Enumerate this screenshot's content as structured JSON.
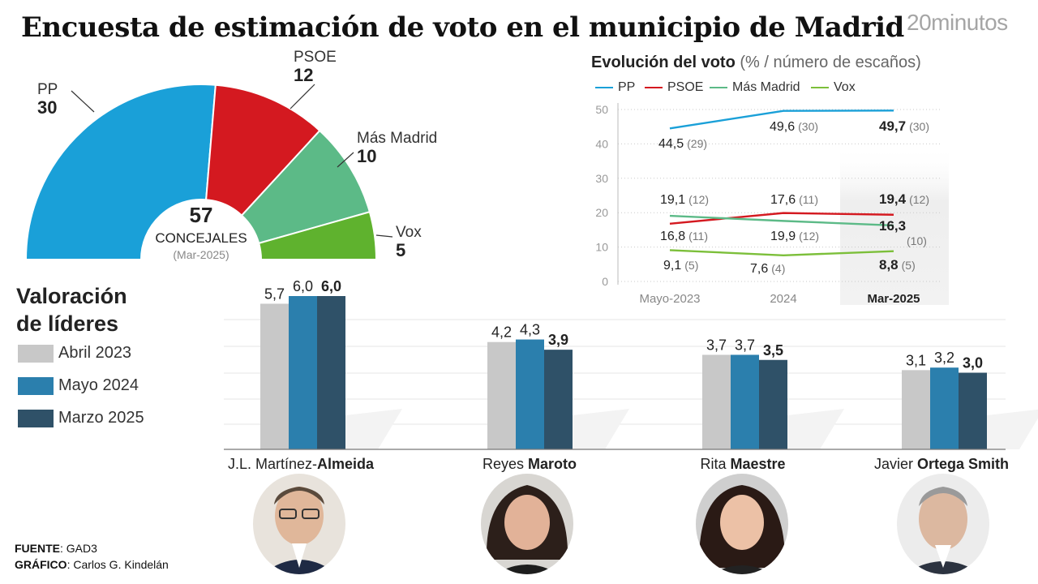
{
  "title": "Encuesta de estimación de voto en el municipio de Madrid",
  "brand": "20minutos",
  "colors": {
    "pp": "#1aa0d8",
    "psoe": "#d41920",
    "mas_madrid": "#5cba87",
    "vox": "#5fb22e",
    "abril2023": "#c8c8c8",
    "mayo2024": "#2b7fad",
    "marzo2025": "#2f5168"
  },
  "chart_data": [
    {
      "type": "pie",
      "subtype": "semicircle",
      "center_value": "57",
      "center_label": "CONCEJALES",
      "center_sub": "(Mar-2025)",
      "slices": [
        {
          "name": "PP",
          "value": 30
        },
        {
          "name": "PSOE",
          "value": 12
        },
        {
          "name": "Más Madrid",
          "value": 10
        },
        {
          "name": "Vox",
          "value": 5
        }
      ]
    },
    {
      "type": "line",
      "title": "Evolución del voto",
      "title_suffix": "(% /",
      "title_suffix2": "número de escaños)",
      "categories": [
        "Mayo-2023",
        "2024",
        "Mar-2025"
      ],
      "yticks": [
        0,
        10,
        20,
        30,
        40,
        50
      ],
      "ylim": [
        0,
        50
      ],
      "legend": [
        "PP",
        "PSOE",
        "Más Madrid",
        "Vox"
      ],
      "series": [
        {
          "name": "PP",
          "values": [
            44.5,
            49.6,
            49.7
          ],
          "labels": [
            "44,5",
            "49,6",
            "49,7"
          ],
          "seats": [
            "(29)",
            "(30)",
            "(30)"
          ]
        },
        {
          "name": "PSOE",
          "values": [
            16.8,
            19.9,
            19.4
          ],
          "labels": [
            "16,8",
            "19,9",
            "19,4"
          ],
          "seats": [
            "(11)",
            "(12)",
            "(12)"
          ]
        },
        {
          "name": "Más Madrid",
          "values": [
            19.1,
            17.6,
            16.3
          ],
          "labels": [
            "19,1",
            "17,6",
            "16,3"
          ],
          "seats": [
            "(12)",
            "(11)",
            "(10)"
          ]
        },
        {
          "name": "Vox",
          "values": [
            9.1,
            7.6,
            8.8
          ],
          "labels": [
            "9,1",
            "7,6",
            "8,8"
          ],
          "seats": [
            "(5)",
            "(4)",
            "(5)"
          ]
        }
      ]
    },
    {
      "type": "bar",
      "title": "Valoración de líderes",
      "title_line1": "Valoración",
      "title_line2": "de líderes",
      "ylim": [
        0,
        6
      ],
      "legend": [
        "Abril 2023",
        "Mayo 2024",
        "Marzo 2025"
      ],
      "leaders": [
        {
          "name_regular": "J.L. Martínez-",
          "name_bold": "Almeida",
          "values": [
            5.7,
            6.0,
            6.0
          ],
          "labels": [
            "5,7",
            "6,0",
            "6,0"
          ]
        },
        {
          "name_regular": "Reyes ",
          "name_bold": "Maroto",
          "values": [
            4.2,
            4.3,
            3.9
          ],
          "labels": [
            "4,2",
            "4,3",
            "3,9"
          ]
        },
        {
          "name_regular": "Rita ",
          "name_bold": "Maestre",
          "values": [
            3.7,
            3.7,
            3.5
          ],
          "labels": [
            "3,7",
            "3,7",
            "3,5"
          ]
        },
        {
          "name_regular": "Javier ",
          "name_bold": "Ortega Smith",
          "values": [
            3.1,
            3.2,
            3.0
          ],
          "labels": [
            "3,1",
            "3,2",
            "3,0"
          ]
        }
      ]
    }
  ],
  "footer": {
    "fuente_label": "FUENTE",
    "fuente": ": GAD3",
    "grafico_label": "GRÁFICO",
    "grafico": ": Carlos G. Kindelán"
  }
}
